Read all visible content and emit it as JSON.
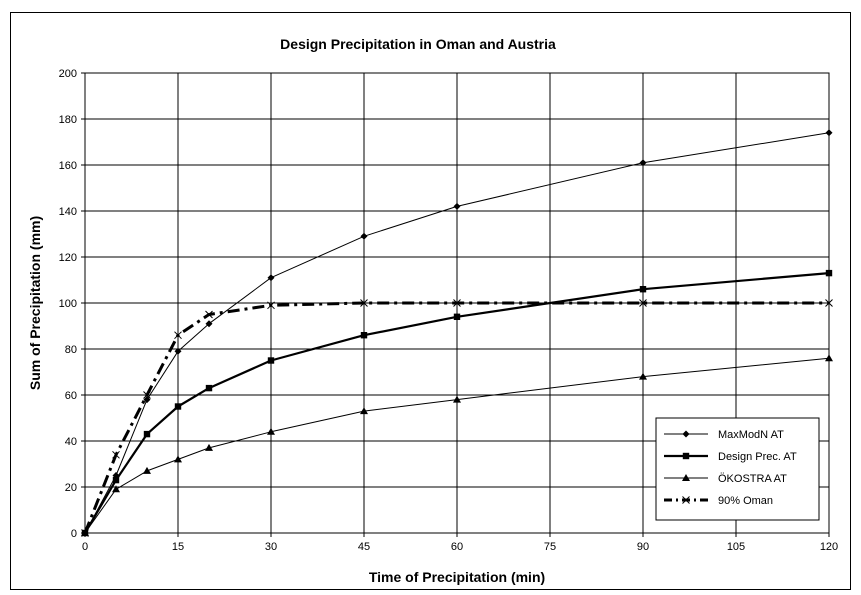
{
  "chart_data": {
    "type": "line",
    "title": "Design Precipitation in Oman and Austria",
    "xlabel": "Time of Precipitation (min)",
    "ylabel": "Sum of Precipitation (mm)",
    "xlim": [
      0,
      120
    ],
    "ylim": [
      0,
      200
    ],
    "x_ticks": [
      "0",
      "15",
      "30",
      "45",
      "60",
      "75",
      "90",
      "105",
      "120"
    ],
    "y_ticks": [
      "0",
      "20",
      "40",
      "60",
      "80",
      "100",
      "120",
      "140",
      "160",
      "180",
      "200"
    ],
    "grid": true,
    "legend_position": "bottom-right",
    "series": [
      {
        "name": "MaxModN AT",
        "marker": "diamond",
        "line": "solid-thin",
        "color": "#000000",
        "x": [
          0,
          5,
          10,
          15,
          20,
          30,
          45,
          60,
          90,
          120
        ],
        "y": [
          0,
          25,
          58,
          79,
          91,
          111,
          129,
          142,
          161,
          174
        ]
      },
      {
        "name": "Design Prec. AT",
        "marker": "square",
        "line": "solid-thick",
        "color": "#000000",
        "x": [
          0,
          5,
          10,
          15,
          20,
          30,
          45,
          60,
          90,
          120
        ],
        "y": [
          0,
          23,
          43,
          55,
          63,
          75,
          86,
          94,
          106,
          113
        ]
      },
      {
        "name": "ÖKOSTRA AT",
        "marker": "triangle",
        "line": "solid-thin",
        "color": "#000000",
        "x": [
          0,
          5,
          10,
          15,
          20,
          30,
          45,
          60,
          90,
          120
        ],
        "y": [
          0,
          19,
          27,
          32,
          37,
          44,
          53,
          58,
          68,
          76
        ]
      },
      {
        "name": "90% Oman",
        "marker": "x",
        "line": "dash-thick",
        "color": "#000000",
        "x": [
          0,
          5,
          10,
          15,
          20,
          30,
          45,
          60,
          90,
          120
        ],
        "y": [
          0,
          34,
          60,
          86,
          95,
          99,
          100,
          100,
          100,
          100
        ]
      }
    ]
  }
}
